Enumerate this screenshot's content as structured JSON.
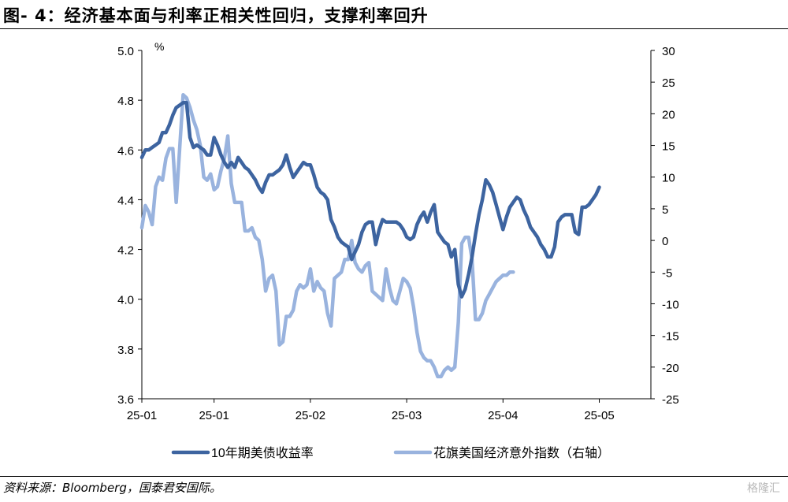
{
  "figure": {
    "title": "图- 4：经济基本面与利率正相关性回归，支撑利率回升",
    "source": "资料来源：Bloomberg，国泰君安国际。",
    "watermark": "格隆汇"
  },
  "chart_data": {
    "type": "line",
    "title": "",
    "xlabel": "",
    "ylabel": "%",
    "x_tick_labels": [
      "25-01",
      "25-01",
      "25-02",
      "25-03",
      "25-04",
      "25-05"
    ],
    "x_tick_dates": [
      "2025-01-01",
      "2025-01-22",
      "2025-02-19",
      "2025-03-19",
      "2025-04-16",
      "2025-05-14"
    ],
    "x_range": [
      "2025-01-01",
      "2025-05-29"
    ],
    "ylim_left": [
      3.6,
      5.0
    ],
    "yticks_left": [
      3.6,
      3.8,
      4.0,
      4.2,
      4.4,
      4.6,
      4.8,
      5.0
    ],
    "ylim_right": [
      -25,
      30
    ],
    "yticks_right": [
      -25,
      -20,
      -15,
      -10,
      -5,
      0,
      5,
      10,
      15,
      20,
      25,
      30
    ],
    "grid": false,
    "legend_position": "bottom",
    "colors": {
      "ust10y": "#3d64a0",
      "citi": "#99b3de"
    },
    "series": [
      {
        "name": "10年期美债收益率",
        "axis": "left",
        "color": "#3d64a0",
        "points": [
          [
            "2025-01-01",
            4.57
          ],
          [
            "2025-01-02",
            4.6
          ],
          [
            "2025-01-03",
            4.6
          ],
          [
            "2025-01-04",
            4.61
          ],
          [
            "2025-01-05",
            4.62
          ],
          [
            "2025-01-06",
            4.63
          ],
          [
            "2025-01-07",
            4.67
          ],
          [
            "2025-01-08",
            4.67
          ],
          [
            "2025-01-09",
            4.7
          ],
          [
            "2025-01-10",
            4.74
          ],
          [
            "2025-01-11",
            4.77
          ],
          [
            "2025-01-12",
            4.78
          ],
          [
            "2025-01-13",
            4.79
          ],
          [
            "2025-01-14",
            4.79
          ],
          [
            "2025-01-15",
            4.65
          ],
          [
            "2025-01-16",
            4.61
          ],
          [
            "2025-01-17",
            4.62
          ],
          [
            "2025-01-18",
            4.61
          ],
          [
            "2025-01-19",
            4.6
          ],
          [
            "2025-01-20",
            4.58
          ],
          [
            "2025-01-21",
            4.58
          ],
          [
            "2025-01-22",
            4.65
          ],
          [
            "2025-01-23",
            4.62
          ],
          [
            "2025-01-24",
            4.58
          ],
          [
            "2025-01-25",
            4.55
          ],
          [
            "2025-01-26",
            4.53
          ],
          [
            "2025-01-27",
            4.55
          ],
          [
            "2025-01-28",
            4.53
          ],
          [
            "2025-01-29",
            4.57
          ],
          [
            "2025-01-30",
            4.55
          ],
          [
            "2025-01-31",
            4.53
          ],
          [
            "2025-02-01",
            4.52
          ],
          [
            "2025-02-02",
            4.5
          ],
          [
            "2025-02-03",
            4.48
          ],
          [
            "2025-02-04",
            4.45
          ],
          [
            "2025-02-05",
            4.43
          ],
          [
            "2025-02-06",
            4.47
          ],
          [
            "2025-02-07",
            4.5
          ],
          [
            "2025-02-08",
            4.5
          ],
          [
            "2025-02-09",
            4.51
          ],
          [
            "2025-02-10",
            4.52
          ],
          [
            "2025-02-11",
            4.54
          ],
          [
            "2025-02-12",
            4.58
          ],
          [
            "2025-02-13",
            4.53
          ],
          [
            "2025-02-14",
            4.49
          ],
          [
            "2025-02-15",
            4.51
          ],
          [
            "2025-02-16",
            4.53
          ],
          [
            "2025-02-17",
            4.55
          ],
          [
            "2025-02-18",
            4.54
          ],
          [
            "2025-02-19",
            4.54
          ],
          [
            "2025-02-20",
            4.5
          ],
          [
            "2025-02-21",
            4.45
          ],
          [
            "2025-02-22",
            4.43
          ],
          [
            "2025-02-23",
            4.42
          ],
          [
            "2025-02-24",
            4.4
          ],
          [
            "2025-02-25",
            4.32
          ],
          [
            "2025-02-26",
            4.29
          ],
          [
            "2025-02-27",
            4.25
          ],
          [
            "2025-02-28",
            4.23
          ],
          [
            "2025-03-01",
            4.22
          ],
          [
            "2025-03-02",
            4.21
          ],
          [
            "2025-03-03",
            4.16
          ],
          [
            "2025-03-04",
            4.19
          ],
          [
            "2025-03-05",
            4.22
          ],
          [
            "2025-03-06",
            4.27
          ],
          [
            "2025-03-07",
            4.3
          ],
          [
            "2025-03-08",
            4.31
          ],
          [
            "2025-03-09",
            4.31
          ],
          [
            "2025-03-10",
            4.22
          ],
          [
            "2025-03-11",
            4.28
          ],
          [
            "2025-03-12",
            4.32
          ],
          [
            "2025-03-13",
            4.31
          ],
          [
            "2025-03-14",
            4.31
          ],
          [
            "2025-03-15",
            4.31
          ],
          [
            "2025-03-16",
            4.31
          ],
          [
            "2025-03-17",
            4.3
          ],
          [
            "2025-03-18",
            4.28
          ],
          [
            "2025-03-19",
            4.25
          ],
          [
            "2025-03-20",
            4.24
          ],
          [
            "2025-03-21",
            4.25
          ],
          [
            "2025-03-22",
            4.3
          ],
          [
            "2025-03-23",
            4.33
          ],
          [
            "2025-03-24",
            4.35
          ],
          [
            "2025-03-25",
            4.31
          ],
          [
            "2025-03-26",
            4.35
          ],
          [
            "2025-03-27",
            4.38
          ],
          [
            "2025-03-28",
            4.27
          ],
          [
            "2025-03-29",
            4.25
          ],
          [
            "2025-03-30",
            4.23
          ],
          [
            "2025-03-31",
            4.22
          ],
          [
            "2025-04-01",
            4.17
          ],
          [
            "2025-04-02",
            4.2
          ],
          [
            "2025-04-03",
            4.06
          ],
          [
            "2025-04-04",
            4.01
          ],
          [
            "2025-04-05",
            4.04
          ],
          [
            "2025-04-06",
            4.1
          ],
          [
            "2025-04-07",
            4.17
          ],
          [
            "2025-04-08",
            4.26
          ],
          [
            "2025-04-09",
            4.34
          ],
          [
            "2025-04-10",
            4.4
          ],
          [
            "2025-04-11",
            4.48
          ],
          [
            "2025-04-12",
            4.46
          ],
          [
            "2025-04-13",
            4.43
          ],
          [
            "2025-04-14",
            4.38
          ],
          [
            "2025-04-15",
            4.33
          ],
          [
            "2025-04-16",
            4.28
          ],
          [
            "2025-04-17",
            4.33
          ],
          [
            "2025-04-18",
            4.37
          ],
          [
            "2025-04-19",
            4.39
          ],
          [
            "2025-04-20",
            4.41
          ],
          [
            "2025-04-21",
            4.4
          ],
          [
            "2025-04-22",
            4.36
          ],
          [
            "2025-04-23",
            4.33
          ],
          [
            "2025-04-24",
            4.29
          ],
          [
            "2025-04-25",
            4.27
          ],
          [
            "2025-04-26",
            4.25
          ],
          [
            "2025-04-27",
            4.22
          ],
          [
            "2025-04-28",
            4.2
          ],
          [
            "2025-04-29",
            4.17
          ],
          [
            "2025-04-30",
            4.17
          ],
          [
            "2025-05-01",
            4.21
          ],
          [
            "2025-05-02",
            4.31
          ],
          [
            "2025-05-03",
            4.33
          ],
          [
            "2025-05-04",
            4.34
          ],
          [
            "2025-05-05",
            4.34
          ],
          [
            "2025-05-06",
            4.34
          ],
          [
            "2025-05-07",
            4.27
          ],
          [
            "2025-05-08",
            4.26
          ],
          [
            "2025-05-09",
            4.37
          ],
          [
            "2025-05-10",
            4.37
          ],
          [
            "2025-05-11",
            4.38
          ],
          [
            "2025-05-12",
            4.4
          ],
          [
            "2025-05-13",
            4.42
          ],
          [
            "2025-05-14",
            4.45
          ]
        ]
      },
      {
        "name": "花旗美国经济意外指数（右轴）",
        "axis": "right",
        "color": "#99b3de",
        "points": [
          [
            "2025-01-01",
            2.0
          ],
          [
            "2025-01-02",
            5.5
          ],
          [
            "2025-01-03",
            4.5
          ],
          [
            "2025-01-04",
            2.5
          ],
          [
            "2025-01-05",
            8.5
          ],
          [
            "2025-01-06",
            10.0
          ],
          [
            "2025-01-07",
            9.5
          ],
          [
            "2025-01-08",
            13.0
          ],
          [
            "2025-01-09",
            14.5
          ],
          [
            "2025-01-10",
            14.5
          ],
          [
            "2025-01-11",
            6.0
          ],
          [
            "2025-01-12",
            14.5
          ],
          [
            "2025-01-13",
            23.0
          ],
          [
            "2025-01-14",
            22.5
          ],
          [
            "2025-01-15",
            21.0
          ],
          [
            "2025-01-16",
            19.0
          ],
          [
            "2025-01-17",
            17.5
          ],
          [
            "2025-01-18",
            15.0
          ],
          [
            "2025-01-19",
            10.0
          ],
          [
            "2025-01-20",
            9.5
          ],
          [
            "2025-01-21",
            10.5
          ],
          [
            "2025-01-22",
            8.0
          ],
          [
            "2025-01-23",
            8.5
          ],
          [
            "2025-01-24",
            11.0
          ],
          [
            "2025-01-25",
            13.0
          ],
          [
            "2025-01-26",
            16.5
          ],
          [
            "2025-01-27",
            9.0
          ],
          [
            "2025-01-28",
            6.0
          ],
          [
            "2025-01-29",
            6.0
          ],
          [
            "2025-01-30",
            6.0
          ],
          [
            "2025-01-31",
            1.5
          ],
          [
            "2025-02-01",
            1.5
          ],
          [
            "2025-02-02",
            2.0
          ],
          [
            "2025-02-03",
            0.5
          ],
          [
            "2025-02-04",
            0.0
          ],
          [
            "2025-02-05",
            -3.0
          ],
          [
            "2025-02-06",
            -8.0
          ],
          [
            "2025-02-07",
            -6.0
          ],
          [
            "2025-02-08",
            -5.5
          ],
          [
            "2025-02-09",
            -8.0
          ],
          [
            "2025-02-10",
            -16.5
          ],
          [
            "2025-02-11",
            -16.0
          ],
          [
            "2025-02-12",
            -12.0
          ],
          [
            "2025-02-13",
            -12.0
          ],
          [
            "2025-02-14",
            -11.0
          ],
          [
            "2025-02-15",
            -8.0
          ],
          [
            "2025-02-16",
            -7.0
          ],
          [
            "2025-02-17",
            -7.5
          ],
          [
            "2025-02-18",
            -7.0
          ],
          [
            "2025-02-19",
            -4.5
          ],
          [
            "2025-02-20",
            -8.0
          ],
          [
            "2025-02-21",
            -6.5
          ],
          [
            "2025-02-22",
            -7.5
          ],
          [
            "2025-02-23",
            -8.0
          ],
          [
            "2025-02-24",
            -11.5
          ],
          [
            "2025-02-25",
            -13.5
          ],
          [
            "2025-02-26",
            -6.0
          ],
          [
            "2025-02-27",
            -5.5
          ],
          [
            "2025-02-28",
            -5.0
          ],
          [
            "2025-03-01",
            -3.0
          ],
          [
            "2025-03-02",
            -3.0
          ],
          [
            "2025-03-03",
            0.0
          ],
          [
            "2025-03-04",
            -3.5
          ],
          [
            "2025-03-05",
            -4.5
          ],
          [
            "2025-03-06",
            -5.0
          ],
          [
            "2025-03-07",
            -4.0
          ],
          [
            "2025-03-08",
            -3.5
          ],
          [
            "2025-03-09",
            -8.0
          ],
          [
            "2025-03-10",
            -8.5
          ],
          [
            "2025-03-11",
            -9.0
          ],
          [
            "2025-03-12",
            -9.5
          ],
          [
            "2025-03-13",
            -4.5
          ],
          [
            "2025-03-14",
            -7.5
          ],
          [
            "2025-03-15",
            -9.5
          ],
          [
            "2025-03-16",
            -10.0
          ],
          [
            "2025-03-17",
            -8.0
          ],
          [
            "2025-03-18",
            -6.0
          ],
          [
            "2025-03-19",
            -6.5
          ],
          [
            "2025-03-20",
            -7.5
          ],
          [
            "2025-03-21",
            -10.5
          ],
          [
            "2025-03-22",
            -14.5
          ],
          [
            "2025-03-23",
            -17.5
          ],
          [
            "2025-03-24",
            -18.5
          ],
          [
            "2025-03-25",
            -19.0
          ],
          [
            "2025-03-26",
            -19.0
          ],
          [
            "2025-03-27",
            -20.0
          ],
          [
            "2025-03-28",
            -21.5
          ],
          [
            "2025-03-29",
            -21.5
          ],
          [
            "2025-03-30",
            -20.5
          ],
          [
            "2025-03-31",
            -20.0
          ],
          [
            "2025-04-01",
            -20.5
          ],
          [
            "2025-04-02",
            -20.0
          ],
          [
            "2025-04-03",
            -13.0
          ],
          [
            "2025-04-04",
            -0.5
          ],
          [
            "2025-04-05",
            0.5
          ],
          [
            "2025-04-06",
            0.5
          ],
          [
            "2025-04-07",
            -3.0
          ],
          [
            "2025-04-08",
            -12.5
          ],
          [
            "2025-04-09",
            -12.5
          ],
          [
            "2025-04-10",
            -11.5
          ],
          [
            "2025-04-11",
            -9.5
          ],
          [
            "2025-04-12",
            -8.5
          ],
          [
            "2025-04-13",
            -7.5
          ],
          [
            "2025-04-14",
            -6.5
          ],
          [
            "2025-04-15",
            -6.0
          ],
          [
            "2025-04-16",
            -5.5
          ],
          [
            "2025-04-17",
            -5.5
          ],
          [
            "2025-04-18",
            -5.0
          ],
          [
            "2025-04-19",
            -5.0
          ]
        ]
      }
    ]
  }
}
